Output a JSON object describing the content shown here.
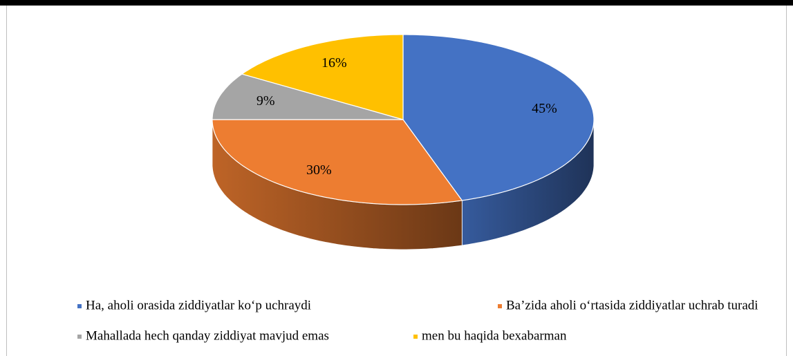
{
  "chart_data": {
    "type": "pie",
    "categories": [
      "Ha, aholi orasida ziddiyatlar ko‘p uchraydi",
      "Ba’zida aholi o‘rtasida ziddiyatlar uchrab turadi",
      "Mahallada hech qanday ziddiyat mavjud emas",
      "men bu haqida bexabarman"
    ],
    "values": [
      45,
      30,
      9,
      16
    ],
    "value_labels": [
      "45%",
      "30%",
      "9%",
      "16%"
    ],
    "colors": [
      "#4472c4",
      "#ed7d31",
      "#a5a5a5",
      "#ffc000"
    ],
    "legend": "bottom"
  }
}
